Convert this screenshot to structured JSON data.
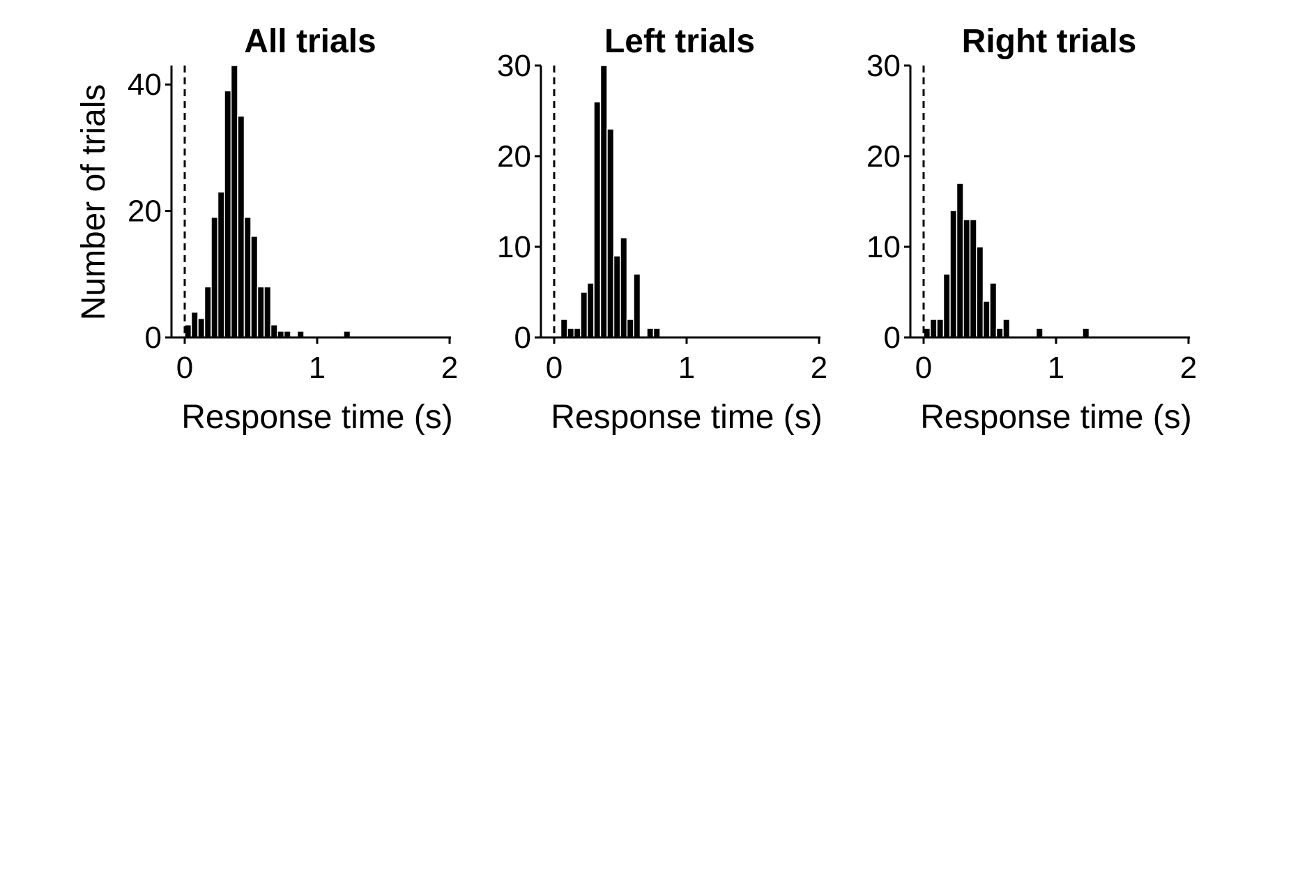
{
  "colors": {
    "bar": "#000000",
    "bar_edge": "#ffffff",
    "axis": "#000000",
    "background": "#ffffff"
  },
  "chart_data": [
    {
      "type": "bar",
      "title": "All trials",
      "xlabel": "Response time (s)",
      "ylabel": "Number of trials",
      "xlim": [
        -0.1,
        2.0
      ],
      "ylim": [
        0,
        43
      ],
      "xticks": [
        "0",
        "1",
        "2"
      ],
      "xtick_values": [
        0,
        1,
        2
      ],
      "yticks": [
        "0",
        "20",
        "40"
      ],
      "ytick_values": [
        0,
        20,
        40
      ],
      "bin_width": 0.05,
      "dashed_reference_x": 0,
      "bins": [
        {
          "x": 0.0,
          "count": 2
        },
        {
          "x": 0.05,
          "count": 4
        },
        {
          "x": 0.1,
          "count": 3
        },
        {
          "x": 0.15,
          "count": 8
        },
        {
          "x": 0.2,
          "count": 19
        },
        {
          "x": 0.25,
          "count": 23
        },
        {
          "x": 0.3,
          "count": 39
        },
        {
          "x": 0.35,
          "count": 43
        },
        {
          "x": 0.4,
          "count": 35
        },
        {
          "x": 0.45,
          "count": 19
        },
        {
          "x": 0.5,
          "count": 16
        },
        {
          "x": 0.55,
          "count": 8
        },
        {
          "x": 0.6,
          "count": 8
        },
        {
          "x": 0.65,
          "count": 2
        },
        {
          "x": 0.7,
          "count": 1
        },
        {
          "x": 0.75,
          "count": 1
        },
        {
          "x": 0.85,
          "count": 1
        },
        {
          "x": 1.2,
          "count": 1
        }
      ]
    },
    {
      "type": "bar",
      "title": "Left trials",
      "xlabel": "Response time (s)",
      "ylabel": "",
      "xlim": [
        -0.1,
        2.0
      ],
      "ylim": [
        0,
        30
      ],
      "xticks": [
        "0",
        "1",
        "2"
      ],
      "xtick_values": [
        0,
        1,
        2
      ],
      "yticks": [
        "0",
        "10",
        "20",
        "30"
      ],
      "ytick_values": [
        0,
        10,
        20,
        30
      ],
      "bin_width": 0.05,
      "dashed_reference_x": 0,
      "bins": [
        {
          "x": 0.05,
          "count": 2
        },
        {
          "x": 0.1,
          "count": 1
        },
        {
          "x": 0.15,
          "count": 1
        },
        {
          "x": 0.2,
          "count": 5
        },
        {
          "x": 0.25,
          "count": 6
        },
        {
          "x": 0.3,
          "count": 26
        },
        {
          "x": 0.35,
          "count": 30
        },
        {
          "x": 0.4,
          "count": 23
        },
        {
          "x": 0.45,
          "count": 9
        },
        {
          "x": 0.5,
          "count": 11
        },
        {
          "x": 0.55,
          "count": 2
        },
        {
          "x": 0.6,
          "count": 7
        },
        {
          "x": 0.7,
          "count": 1
        },
        {
          "x": 0.75,
          "count": 1
        }
      ]
    },
    {
      "type": "bar",
      "title": "Right trials",
      "xlabel": "Response time (s)",
      "ylabel": "",
      "xlim": [
        -0.1,
        2.0
      ],
      "ylim": [
        0,
        30
      ],
      "xticks": [
        "0",
        "1",
        "2"
      ],
      "xtick_values": [
        0,
        1,
        2
      ],
      "yticks": [
        "0",
        "10",
        "20",
        "30"
      ],
      "ytick_values": [
        0,
        10,
        20,
        30
      ],
      "bin_width": 0.05,
      "dashed_reference_x": 0,
      "bins": [
        {
          "x": 0.0,
          "count": 1
        },
        {
          "x": 0.05,
          "count": 2
        },
        {
          "x": 0.1,
          "count": 2
        },
        {
          "x": 0.15,
          "count": 7
        },
        {
          "x": 0.2,
          "count": 14
        },
        {
          "x": 0.25,
          "count": 17
        },
        {
          "x": 0.3,
          "count": 13
        },
        {
          "x": 0.35,
          "count": 13
        },
        {
          "x": 0.4,
          "count": 10
        },
        {
          "x": 0.45,
          "count": 4
        },
        {
          "x": 0.5,
          "count": 6
        },
        {
          "x": 0.55,
          "count": 1
        },
        {
          "x": 0.6,
          "count": 2
        },
        {
          "x": 0.85,
          "count": 1
        },
        {
          "x": 1.2,
          "count": 1
        }
      ]
    }
  ]
}
